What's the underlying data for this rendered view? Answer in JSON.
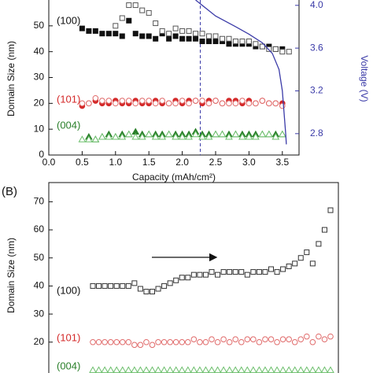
{
  "chart_data": [
    {
      "type": "scatter",
      "x_label": "Capacity (mAh/cm²)",
      "y_label": "Domain Size (nm)",
      "y2_label": "Voltage (V)",
      "annotations": [
        "(100)",
        "(101)",
        "(004)"
      ],
      "xlim": [
        0,
        3.75
      ],
      "ylim": [
        0,
        60
      ],
      "y2lim": [
        2.6,
        4.05
      ],
      "xticks": [
        {
          "value": 0,
          "label": "0.0"
        },
        {
          "value": 0.5,
          "label": "0.5"
        },
        {
          "value": 1,
          "label": "1.0"
        },
        {
          "value": 1.5,
          "label": "1.5"
        },
        {
          "value": 2,
          "label": "2.0"
        },
        {
          "value": 2.5,
          "label": "2.5"
        },
        {
          "value": 3,
          "label": "3.0"
        },
        {
          "value": 3.5,
          "label": "3.5"
        }
      ],
      "yticks": [
        0,
        10,
        20,
        30,
        40,
        50
      ],
      "y2ticks": [
        {
          "value": 2.8,
          "label": "2.8"
        },
        {
          "value": 3.2,
          "label": "3.2"
        },
        {
          "value": 3.6,
          "label": "3.6"
        },
        {
          "value": 4,
          "label": "4.0"
        }
      ],
      "vline": 2.27,
      "y2_color": "#3b3ba8",
      "series": [
        {
          "color": "#111111",
          "marker": "square",
          "filled": true,
          "x": [
            0.5,
            0.6,
            0.7,
            0.8,
            0.9,
            1.0,
            1.1,
            1.2,
            1.3,
            1.4,
            1.5,
            1.6,
            1.7,
            1.8,
            1.9,
            2.0,
            2.1,
            2.2,
            2.3,
            2.4,
            2.5,
            2.6,
            2.7,
            2.8,
            2.9,
            3.0,
            3.1,
            3.2,
            3.3,
            3.4,
            3.5
          ],
          "values": [
            49,
            48,
            48,
            47,
            47,
            47,
            46,
            52,
            47,
            46,
            46,
            45,
            47,
            45,
            46,
            45,
            45,
            45,
            44,
            44,
            44,
            44,
            43,
            43,
            43,
            43,
            42,
            42,
            42,
            41,
            41
          ]
        },
        {
          "color": "#555555",
          "marker": "square",
          "filled": false,
          "x": [
            1.0,
            1.1,
            1.2,
            1.3,
            1.4,
            1.5,
            1.6,
            1.7,
            1.8,
            1.9,
            2.0,
            2.1,
            2.2,
            2.3,
            2.4,
            2.5,
            2.6,
            2.7,
            2.8,
            2.9,
            3.0,
            3.1,
            3.2,
            3.3,
            3.4,
            3.5,
            3.6
          ],
          "values": [
            50,
            53,
            58,
            58,
            56,
            55,
            51,
            48,
            47,
            49,
            48,
            48,
            47,
            47,
            46,
            46,
            45,
            45,
            44,
            44,
            44,
            43,
            42,
            41,
            41,
            40,
            40
          ]
        },
        {
          "color": "#d42a2a",
          "marker": "circle",
          "filled": true,
          "x": [
            0.5,
            0.6,
            0.7,
            0.8,
            0.9,
            1.0,
            1.1,
            1.2,
            1.3,
            1.4,
            1.5,
            1.6,
            1.7,
            1.8,
            1.9,
            2.0,
            2.1,
            2.2,
            2.3,
            2.4,
            2.5,
            2.6,
            2.7,
            2.8,
            2.9,
            3.0,
            3.1,
            3.2,
            3.3,
            3.4,
            3.5
          ],
          "values": [
            19,
            20,
            21,
            20,
            20,
            21,
            20,
            20,
            21,
            20,
            20,
            21,
            20,
            20,
            21,
            20,
            21,
            21,
            20,
            21,
            21,
            20,
            21,
            21,
            20,
            21,
            20,
            21,
            20,
            20,
            20
          ]
        },
        {
          "color": "#e06a6a",
          "marker": "circle",
          "filled": false,
          "x": [
            0.5,
            0.6,
            0.7,
            0.8,
            0.9,
            1.0,
            1.1,
            1.2,
            1.3,
            1.4,
            1.5,
            1.6,
            1.7,
            1.8,
            1.9,
            2.0,
            2.1,
            2.2,
            2.3,
            2.4,
            2.5,
            2.6,
            2.7,
            2.8,
            2.9,
            3.0,
            3.1,
            3.2,
            3.3,
            3.4,
            3.5
          ],
          "values": [
            20,
            20,
            22,
            21,
            21,
            20,
            21,
            21,
            20,
            21,
            21,
            20,
            21,
            20,
            20,
            21,
            20,
            21,
            21,
            20,
            21,
            20,
            20,
            20,
            21,
            20,
            20,
            21,
            20,
            20,
            19
          ]
        },
        {
          "color": "#2a7f2a",
          "marker": "triangle",
          "filled": true,
          "x": [
            0.6,
            0.7,
            0.8,
            0.9,
            1.0,
            1.1,
            1.2,
            1.3,
            1.4,
            1.5,
            1.6,
            1.7,
            1.8,
            1.9,
            2.0,
            2.1,
            2.2,
            2.3,
            2.4,
            2.5,
            2.6,
            2.7,
            2.8,
            2.9,
            3.0,
            3.1,
            3.2,
            3.3,
            3.4,
            3.5
          ],
          "values": [
            7,
            6,
            7,
            8,
            7,
            8,
            8,
            9,
            8,
            8,
            8,
            8,
            8,
            8,
            8,
            8,
            9,
            8,
            8,
            8,
            8,
            8,
            8,
            8,
            8,
            8,
            8,
            8,
            8,
            8
          ]
        },
        {
          "color": "#6cbf6c",
          "marker": "triangle",
          "filled": false,
          "x": [
            0.5,
            0.6,
            0.7,
            0.8,
            0.9,
            1.0,
            1.1,
            1.2,
            1.3,
            1.4,
            1.5,
            1.6,
            1.7,
            1.8,
            1.9,
            2.0,
            2.1,
            2.2,
            2.3,
            2.4,
            2.5,
            2.6,
            2.7,
            2.8,
            2.9,
            3.0,
            3.1,
            3.2,
            3.3,
            3.4,
            3.5
          ],
          "values": [
            6,
            6,
            6,
            7,
            7,
            7,
            7,
            8,
            7,
            7,
            8,
            7,
            7,
            8,
            7,
            7,
            7,
            8,
            7,
            7,
            8,
            8,
            7,
            8,
            7,
            7,
            7,
            8,
            8,
            7,
            8
          ]
        },
        {
          "color": "#3b3ba8",
          "marker": "line",
          "axis": "y2",
          "x": [
            2.2,
            2.5,
            2.8,
            3.0,
            3.2,
            3.35,
            3.45,
            3.5,
            3.55,
            3.56
          ],
          "values": [
            4.05,
            3.9,
            3.8,
            3.73,
            3.65,
            3.55,
            3.4,
            3.2,
            2.8,
            2.7
          ]
        }
      ]
    },
    {
      "type": "scatter",
      "title": "(B)",
      "y_label": "Domain Size (nm)",
      "annotations": [
        "(100)",
        "(101)",
        "(004)"
      ],
      "ylim": [
        9,
        76
      ],
      "yticks": [
        20,
        30,
        40,
        50,
        60,
        70
      ],
      "series": [
        {
          "color": "#333333",
          "marker": "square",
          "filled": false,
          "values": [
            40,
            40,
            40,
            40,
            40,
            40,
            40,
            41,
            39,
            38,
            38,
            39,
            40,
            41,
            42,
            43,
            43,
            44,
            44,
            44,
            45,
            44,
            45,
            45,
            45,
            45,
            44,
            45,
            45,
            45,
            46,
            45,
            46,
            47,
            48,
            50,
            52,
            48,
            55,
            60,
            67
          ]
        },
        {
          "color": "#e06a6a",
          "marker": "circle",
          "filled": false,
          "values": [
            20,
            20,
            20,
            20,
            20,
            20,
            20,
            19,
            19,
            20,
            19,
            20,
            20,
            20,
            20,
            20,
            20,
            21,
            20,
            20,
            21,
            20,
            21,
            20,
            21,
            20,
            21,
            21,
            20,
            21,
            21,
            20,
            21,
            21,
            20,
            21,
            22,
            20,
            22,
            21,
            22
          ]
        },
        {
          "color": "#6cbf6c",
          "marker": "triangle",
          "filled": false,
          "values": [
            10,
            10,
            10,
            10,
            10,
            10,
            10,
            10,
            10,
            10,
            10,
            10,
            10,
            10,
            10,
            10,
            10,
            10,
            10,
            10,
            10,
            10,
            10,
            10,
            10,
            10,
            10,
            10,
            10,
            10,
            10,
            10,
            10,
            10,
            10,
            10,
            10,
            10,
            10,
            10,
            10
          ]
        }
      ]
    }
  ]
}
